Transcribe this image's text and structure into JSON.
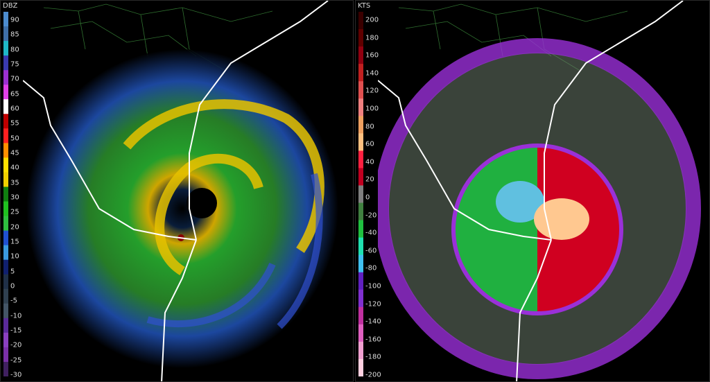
{
  "reflectivity": {
    "unit": "DBZ",
    "ticks": [
      "90",
      "85",
      "80",
      "75",
      "70",
      "65",
      "60",
      "55",
      "50",
      "45",
      "40",
      "35",
      "30",
      "25",
      "20",
      "15",
      "10",
      "5",
      "0",
      "-5",
      "-10",
      "-15",
      "-20",
      "-25",
      "-30"
    ],
    "colors": [
      "#4c8ccf",
      "#3f6fa8",
      "#1fb8c8",
      "#3a3ab0",
      "#9b30d0",
      "#e040e8",
      "#ffffff",
      "#c00000",
      "#ff2020",
      "#ff9000",
      "#ffe000",
      "#f0d000",
      "#108010",
      "#20c020",
      "#2fbf3f",
      "#2050d0",
      "#3a9ae0",
      "#10206f",
      "#203048",
      "#304050",
      "#445566",
      "#5a2a9a",
      "#8a40c0",
      "#7a30a8",
      "#402060"
    ]
  },
  "velocity": {
    "unit": "KTS",
    "ticks": [
      "200",
      "180",
      "160",
      "140",
      "120",
      "100",
      "80",
      "60",
      "40",
      "20",
      "0",
      "-20",
      "-40",
      "-60",
      "-80",
      "-100",
      "-120",
      "-140",
      "-160",
      "-180",
      "-200"
    ],
    "colors": [
      "#3a0000",
      "#600000",
      "#900010",
      "#c02020",
      "#e05050",
      "#f08080",
      "#f0a060",
      "#ffc080",
      "#ff2040",
      "#c00020",
      "#808080",
      "#408040",
      "#20c040",
      "#20e0b0",
      "#40c0f0",
      "#6020c0",
      "#8030d0",
      "#c030a0",
      "#e060c0",
      "#f0a0d0",
      "#ffd0e0"
    ]
  }
}
